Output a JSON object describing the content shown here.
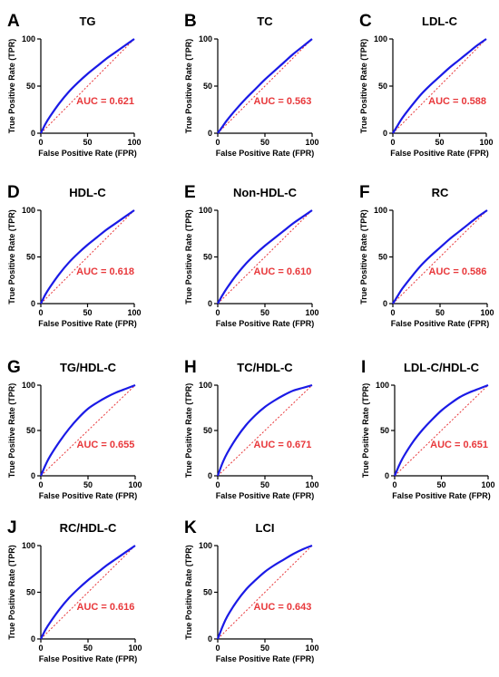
{
  "figure": {
    "colors": {
      "roc_curve": "#1a1ae6",
      "reference_line": "#e8383b",
      "auc_text": "#e8383b",
      "axes": "#000000"
    }
  },
  "chart_data": [
    {
      "type": "line",
      "letter": "A",
      "title": "TG",
      "xlabel": "False Positive Rate (FPR)",
      "ylabel": "True Positive Rate (TPR)",
      "xlim": [
        0,
        100
      ],
      "ylim": [
        0,
        100
      ],
      "xticks": [
        "0",
        "50",
        "100"
      ],
      "yticks": [
        "0",
        "50",
        "100"
      ],
      "auc_label": "AUC = 0.621",
      "auc": 0.621,
      "series": [
        {
          "x": [
            0,
            5,
            10,
            20,
            30,
            40,
            50,
            60,
            70,
            80,
            90,
            100
          ],
          "y": [
            0,
            10,
            18,
            32,
            44,
            54,
            63,
            71,
            79,
            86,
            93,
            100
          ]
        },
        {
          "x": [
            0,
            100
          ],
          "y": [
            0,
            100
          ],
          "style": "dotted"
        }
      ]
    },
    {
      "type": "line",
      "letter": "B",
      "title": "TC",
      "xlabel": "False Positive Rate (FPR)",
      "ylabel": "True Positive Rate (TPR)",
      "xlim": [
        0,
        100
      ],
      "ylim": [
        0,
        100
      ],
      "xticks": [
        "0",
        "50",
        "100"
      ],
      "yticks": [
        "0",
        "50",
        "100"
      ],
      "auc_label": "AUC = 0.563",
      "auc": 0.563,
      "series": [
        {
          "x": [
            0,
            5,
            10,
            20,
            30,
            40,
            50,
            60,
            70,
            80,
            90,
            100
          ],
          "y": [
            0,
            7,
            14,
            26,
            37,
            47,
            57,
            66,
            75,
            84,
            92,
            100
          ]
        },
        {
          "x": [
            0,
            100
          ],
          "y": [
            0,
            100
          ],
          "style": "dotted"
        }
      ]
    },
    {
      "type": "line",
      "letter": "C",
      "title": "LDL-C",
      "xlabel": "False Positive Rate (FPR)",
      "ylabel": "True Positive Rate (TPR)",
      "xlim": [
        0,
        100
      ],
      "ylim": [
        0,
        100
      ],
      "xticks": [
        "0",
        "50",
        "100"
      ],
      "yticks": [
        "0",
        "50",
        "100"
      ],
      "auc_label": "AUC = 0.588",
      "auc": 0.588,
      "series": [
        {
          "x": [
            0,
            5,
            10,
            20,
            30,
            40,
            50,
            60,
            70,
            80,
            90,
            100
          ],
          "y": [
            0,
            8,
            16,
            29,
            41,
            51,
            60,
            69,
            77,
            85,
            93,
            100
          ]
        },
        {
          "x": [
            0,
            100
          ],
          "y": [
            0,
            100
          ],
          "style": "dotted"
        }
      ]
    },
    {
      "type": "line",
      "letter": "D",
      "title": "HDL-C",
      "xlabel": "False Positive Rate (FPR)",
      "ylabel": "True Positive Rate (TPR)",
      "xlim": [
        0,
        100
      ],
      "ylim": [
        0,
        100
      ],
      "xticks": [
        "0",
        "50",
        "100"
      ],
      "yticks": [
        "0",
        "50",
        "100"
      ],
      "auc_label": "AUC = 0.618",
      "auc": 0.618,
      "series": [
        {
          "x": [
            0,
            5,
            10,
            20,
            30,
            40,
            50,
            60,
            70,
            80,
            90,
            100
          ],
          "y": [
            0,
            10,
            18,
            32,
            44,
            54,
            63,
            71,
            79,
            86,
            93,
            100
          ]
        },
        {
          "x": [
            0,
            100
          ],
          "y": [
            0,
            100
          ],
          "style": "dotted"
        }
      ]
    },
    {
      "type": "line",
      "letter": "E",
      "title": "Non-HDL-C",
      "xlabel": "False Positive Rate (FPR)",
      "ylabel": "True Positive Rate (TPR)",
      "xlim": [
        0,
        100
      ],
      "ylim": [
        0,
        100
      ],
      "xticks": [
        "0",
        "50",
        "100"
      ],
      "yticks": [
        "0",
        "50",
        "100"
      ],
      "auc_label": "AUC = 0.610",
      "auc": 0.61,
      "series": [
        {
          "x": [
            0,
            5,
            10,
            20,
            30,
            40,
            50,
            60,
            70,
            80,
            90,
            100
          ],
          "y": [
            0,
            9,
            17,
            31,
            43,
            53,
            62,
            70,
            78,
            86,
            93,
            100
          ]
        },
        {
          "x": [
            0,
            100
          ],
          "y": [
            0,
            100
          ],
          "style": "dotted"
        }
      ]
    },
    {
      "type": "line",
      "letter": "F",
      "title": "RC",
      "xlabel": "False Positive Rate (FPR)",
      "ylabel": "True Positive Rate (TPR)",
      "xlim": [
        0,
        100
      ],
      "ylim": [
        0,
        100
      ],
      "xticks": [
        "0",
        "50",
        "100"
      ],
      "yticks": [
        "0",
        "50",
        "100"
      ],
      "auc_label": "AUC = 0.586",
      "auc": 0.586,
      "series": [
        {
          "x": [
            0,
            5,
            10,
            20,
            30,
            40,
            50,
            60,
            70,
            80,
            90,
            100
          ],
          "y": [
            0,
            8,
            16,
            29,
            41,
            51,
            60,
            69,
            77,
            85,
            93,
            100
          ]
        },
        {
          "x": [
            0,
            100
          ],
          "y": [
            0,
            100
          ],
          "style": "dotted"
        }
      ]
    },
    {
      "type": "line",
      "letter": "G",
      "title": "TG/HDL-C",
      "xlabel": "False Positive Rate (FPR)",
      "ylabel": "True Positive Rate (TPR)",
      "xlim": [
        0,
        100
      ],
      "ylim": [
        0,
        100
      ],
      "xticks": [
        "0",
        "50",
        "100"
      ],
      "yticks": [
        "0",
        "50",
        "100"
      ],
      "auc_label": "AUC = 0.655",
      "auc": 0.655,
      "series": [
        {
          "x": [
            0,
            5,
            10,
            20,
            30,
            40,
            50,
            60,
            70,
            80,
            90,
            100
          ],
          "y": [
            0,
            12,
            22,
            38,
            52,
            64,
            74,
            81,
            87,
            92,
            96,
            100
          ]
        },
        {
          "x": [
            0,
            100
          ],
          "y": [
            0,
            100
          ],
          "style": "dotted"
        }
      ]
    },
    {
      "type": "line",
      "letter": "H",
      "title": "TC/HDL-C",
      "xlabel": "False Positive Rate (FPR)",
      "ylabel": "True Positive Rate (TPR)",
      "xlim": [
        0,
        100
      ],
      "ylim": [
        0,
        100
      ],
      "xticks": [
        "0",
        "50",
        "100"
      ],
      "yticks": [
        "0",
        "50",
        "100"
      ],
      "auc_label": "AUC = 0.671",
      "auc": 0.671,
      "series": [
        {
          "x": [
            0,
            5,
            10,
            20,
            30,
            40,
            50,
            60,
            70,
            80,
            90,
            100
          ],
          "y": [
            0,
            14,
            25,
            42,
            56,
            67,
            76,
            83,
            89,
            94,
            97,
            100
          ]
        },
        {
          "x": [
            0,
            100
          ],
          "y": [
            0,
            100
          ],
          "style": "dotted"
        }
      ]
    },
    {
      "type": "line",
      "letter": "I",
      "title": "LDL-C/HDL-C",
      "xlabel": "False Positive Rate (FPR)",
      "ylabel": "True Positive Rate (TPR)",
      "xlim": [
        0,
        100
      ],
      "ylim": [
        0,
        100
      ],
      "xticks": [
        "0",
        "50",
        "100"
      ],
      "yticks": [
        "0",
        "50",
        "100"
      ],
      "auc_label": "AUC = 0.651",
      "auc": 0.651,
      "series": [
        {
          "x": [
            0,
            5,
            10,
            20,
            30,
            40,
            50,
            60,
            70,
            80,
            90,
            100
          ],
          "y": [
            0,
            12,
            22,
            38,
            51,
            62,
            72,
            80,
            87,
            92,
            96,
            100
          ]
        },
        {
          "x": [
            0,
            100
          ],
          "y": [
            0,
            100
          ],
          "style": "dotted"
        }
      ]
    },
    {
      "type": "line",
      "letter": "J",
      "title": "RC/HDL-C",
      "xlabel": "False Positive Rate (FPR)",
      "ylabel": "True Positive Rate (TPR)",
      "xlim": [
        0,
        100
      ],
      "ylim": [
        0,
        100
      ],
      "xticks": [
        "0",
        "50",
        "100"
      ],
      "yticks": [
        "0",
        "50",
        "100"
      ],
      "auc_label": "AUC = 0.616",
      "auc": 0.616,
      "series": [
        {
          "x": [
            0,
            5,
            10,
            20,
            30,
            40,
            50,
            60,
            70,
            80,
            90,
            100
          ],
          "y": [
            0,
            10,
            18,
            32,
            44,
            54,
            63,
            71,
            79,
            86,
            93,
            100
          ]
        },
        {
          "x": [
            0,
            100
          ],
          "y": [
            0,
            100
          ],
          "style": "dotted"
        }
      ]
    },
    {
      "type": "line",
      "letter": "K",
      "title": "LCI",
      "xlabel": "False Positive Rate (FPR)",
      "ylabel": "True Positive Rate (TPR)",
      "xlim": [
        0,
        100
      ],
      "ylim": [
        0,
        100
      ],
      "xticks": [
        "0",
        "50",
        "100"
      ],
      "yticks": [
        "0",
        "50",
        "100"
      ],
      "auc_label": "AUC = 0.643",
      "auc": 0.643,
      "series": [
        {
          "x": [
            0,
            5,
            10,
            20,
            30,
            40,
            50,
            60,
            70,
            80,
            90,
            100
          ],
          "y": [
            0,
            13,
            24,
            40,
            53,
            63,
            72,
            79,
            85,
            91,
            96,
            100
          ]
        },
        {
          "x": [
            0,
            100
          ],
          "y": [
            0,
            100
          ],
          "style": "dotted"
        }
      ]
    }
  ]
}
